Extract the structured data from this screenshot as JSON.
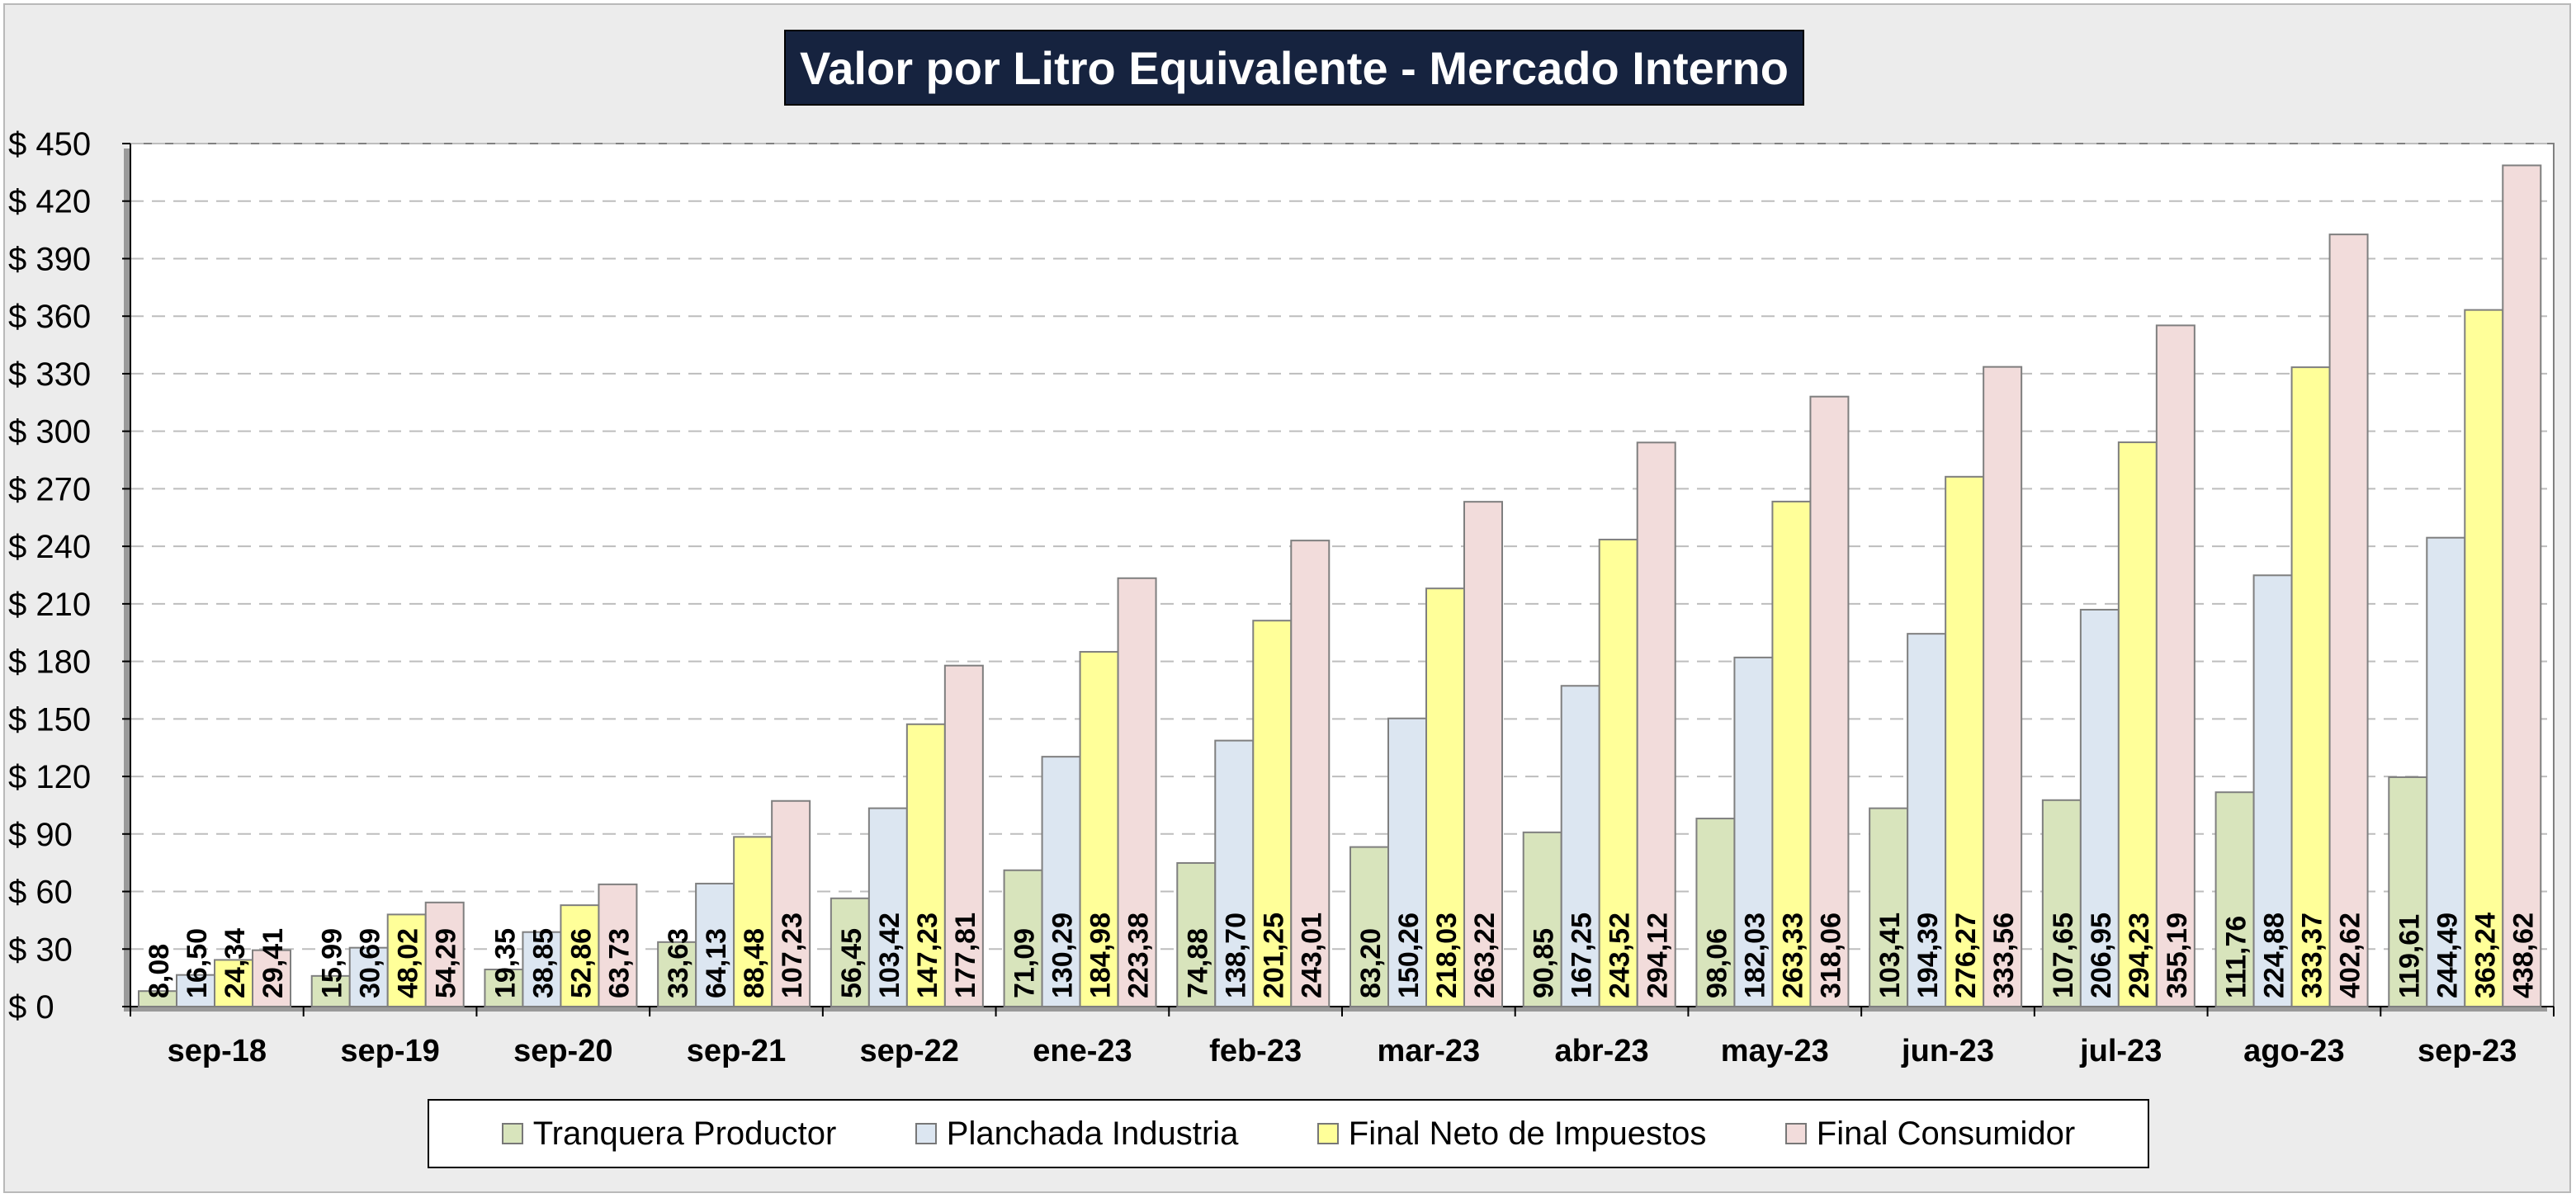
{
  "chart_data": {
    "type": "bar",
    "title": "Valor por Litro Equivalente - Mercado Interno",
    "categories": [
      "sep-18",
      "sep-19",
      "sep-20",
      "sep-21",
      "sep-22",
      "ene-23",
      "feb-23",
      "mar-23",
      "abr-23",
      "may-23",
      "jun-23",
      "jul-23",
      "ago-23",
      "sep-23"
    ],
    "series": [
      {
        "name": "Tranquera Productor",
        "color": "#d8e4bc",
        "values": [
          8.08,
          15.99,
          19.35,
          33.63,
          56.45,
          71.09,
          74.88,
          83.2,
          90.85,
          98.06,
          103.41,
          107.65,
          111.76,
          119.61
        ],
        "labels": [
          "8,08",
          "15,99",
          "19,35",
          "33,63",
          "56,45",
          "71,09",
          "74,88",
          "83,20",
          "90,85",
          "98,06",
          "103,41",
          "107,65",
          "111,76",
          "119,61"
        ]
      },
      {
        "name": "Planchada Industria",
        "color": "#dce6f1",
        "values": [
          16.5,
          30.69,
          38.85,
          64.13,
          103.42,
          130.29,
          138.7,
          150.26,
          167.25,
          182.03,
          194.39,
          206.95,
          224.88,
          244.49
        ],
        "labels": [
          "16,50",
          "30,69",
          "38,85",
          "64,13",
          "103,42",
          "130,29",
          "138,70",
          "150,26",
          "167,25",
          "182,03",
          "194,39",
          "206,95",
          "224,88",
          "244,49"
        ]
      },
      {
        "name": "Final Neto de Impuestos",
        "color": "#ffff99",
        "values": [
          24.34,
          48.02,
          52.86,
          88.48,
          147.23,
          184.98,
          201.25,
          218.03,
          243.52,
          263.33,
          276.27,
          294.23,
          333.37,
          363.24
        ],
        "labels": [
          "24,34",
          "48,02",
          "52,86",
          "88,48",
          "147,23",
          "184,98",
          "201,25",
          "218,03",
          "243,52",
          "263,33",
          "276,27",
          "294,23",
          "333,37",
          "363,24"
        ]
      },
      {
        "name": "Final Consumidor",
        "color": "#f2dcdb",
        "values": [
          29.41,
          54.29,
          63.73,
          107.23,
          177.81,
          223.38,
          243.01,
          263.22,
          294.12,
          318.06,
          333.56,
          355.19,
          402.62,
          438.62
        ],
        "labels": [
          "29,41",
          "54,29",
          "63,73",
          "107,23",
          "177,81",
          "223,38",
          "243,01",
          "263,22",
          "294,12",
          "318,06",
          "333,56",
          "355,19",
          "402,62",
          "438,62"
        ]
      }
    ],
    "ylim": [
      0,
      450
    ],
    "yticks": [
      0,
      30,
      60,
      90,
      120,
      150,
      180,
      210,
      240,
      270,
      300,
      330,
      360,
      390,
      420,
      450
    ],
    "ytick_labels": [
      "$ 0",
      "$ 30",
      "$ 60",
      "$ 90",
      "$ 120",
      "$ 150",
      "$ 180",
      "$ 210",
      "$ 240",
      "$ 270",
      "$ 300",
      "$ 330",
      "$ 360",
      "$ 390",
      "$ 420",
      "$ 450"
    ],
    "grid": true,
    "legend_position": "bottom"
  }
}
